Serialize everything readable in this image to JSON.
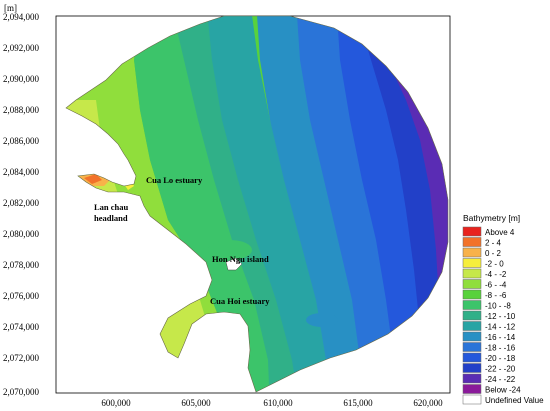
{
  "map": {
    "unit_label": "[m]",
    "y_ticks": [
      "2,094,000",
      "2,092,000",
      "2,090,000",
      "2,088,000",
      "2,086,000",
      "2,084,000",
      "2,082,000",
      "2,080,000",
      "2,078,000",
      "2,076,000",
      "2,074,000",
      "2,072,000",
      "2,070,000"
    ],
    "x_ticks": [
      "600,000",
      "605,000",
      "610,000",
      "615,000",
      "620,000"
    ],
    "annotations": {
      "cua_lo": "Cua Lo estuary",
      "lan_chau_1": "Lan chau",
      "lan_chau_2": "headland",
      "hon_ngu": "Hon Ngu island",
      "cua_hoi": "Cua Hoi estuary"
    }
  },
  "legend": {
    "title": "Bathymetry [m]",
    "items": [
      {
        "label": "Above   4",
        "color": "#e8231e"
      },
      {
        "label": "2 -  4",
        "color": "#f2722a"
      },
      {
        "label": "0 -  2",
        "color": "#f8b24a"
      },
      {
        "label": "-2 -  0",
        "color": "#f6ee3c"
      },
      {
        "label": "-4 -  -2",
        "color": "#c6e84a"
      },
      {
        "label": "-6 -  -4",
        "color": "#90de3c"
      },
      {
        "label": "-8 -  -6",
        "color": "#58d23c"
      },
      {
        "label": "-10 -  -8",
        "color": "#3cc46a"
      },
      {
        "label": "-12 -  -10",
        "color": "#30b088"
      },
      {
        "label": "-14 -  -12",
        "color": "#28a4a4"
      },
      {
        "label": "-16 -  -14",
        "color": "#2890c4"
      },
      {
        "label": "-18 -  -16",
        "color": "#2a74d8"
      },
      {
        "label": "-20 -  -18",
        "color": "#2458dc"
      },
      {
        "label": "-22 -  -20",
        "color": "#2240c8"
      },
      {
        "label": "-24 -  -22",
        "color": "#5a2cb4"
      },
      {
        "label": "Below -24",
        "color": "#8a1a9a"
      },
      {
        "label": "Undefined Value",
        "color": "#ffffff"
      }
    ]
  }
}
